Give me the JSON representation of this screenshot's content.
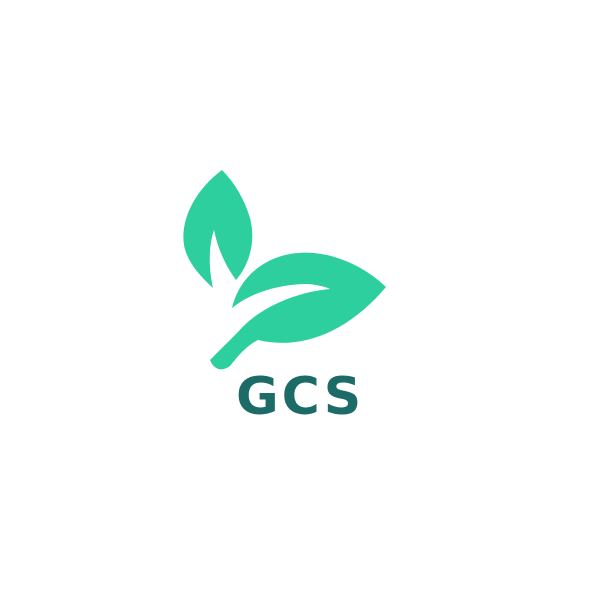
{
  "logo": {
    "wordmark": "GCS",
    "icon": "leaf-sprout-icon"
  },
  "colors": {
    "background": "#ffffff",
    "leaf": "#2ecf9f",
    "text": "#1c6b66"
  }
}
